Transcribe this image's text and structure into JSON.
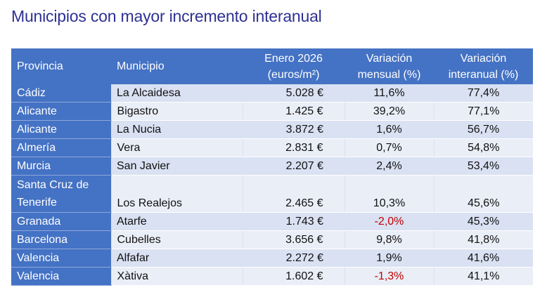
{
  "title": "Municipios con mayor incremento interanual",
  "headers": {
    "provincia": "Provincia",
    "municipio": "Municipio",
    "precio_line1": "Enero 2026",
    "precio_line2": "(euros/m²)",
    "mensual_line1": "Variación",
    "mensual_line2": "mensual (%)",
    "interanual_line1": "Variación",
    "interanual_line2": "interanual (%)"
  },
  "rows": [
    {
      "provincia": "Cádiz",
      "municipio": "La Alcaidesa",
      "precio": "5.028 €",
      "mensual": "11,6%",
      "interanual": "77,4%"
    },
    {
      "provincia": "Alicante",
      "municipio": "Bigastro",
      "precio": "1.425 €",
      "mensual": "39,2%",
      "interanual": "77,1%"
    },
    {
      "provincia": "Alicante",
      "municipio": "La Nucia",
      "precio": "3.872 €",
      "mensual": "1,6%",
      "interanual": "56,7%"
    },
    {
      "provincia": "Almería",
      "municipio": "Vera",
      "precio": "2.831 €",
      "mensual": "0,7%",
      "interanual": "54,8%"
    },
    {
      "provincia": "Murcia",
      "municipio": "San Javier",
      "precio": "2.207 €",
      "mensual": "2,4%",
      "interanual": "53,4%"
    },
    {
      "provincia_line1": "Santa Cruz de",
      "provincia_line2": "Tenerife",
      "municipio": "Los Realejos",
      "precio": "2.465 €",
      "mensual": "10,3%",
      "interanual": "45,6%"
    },
    {
      "provincia": "Granada",
      "municipio": "Atarfe",
      "precio": "1.743 €",
      "mensual": "-2,0%",
      "interanual": "45,3%"
    },
    {
      "provincia": "Barcelona",
      "municipio": "Cubelles",
      "precio": "3.656 €",
      "mensual": "9,8%",
      "interanual": "41,8%"
    },
    {
      "provincia": "Valencia",
      "municipio": "Alfafar",
      "precio": "2.272 €",
      "mensual": "1,9%",
      "interanual": "41,6%"
    },
    {
      "provincia": "Valencia",
      "municipio": "Xàtiva",
      "precio": "1.602 €",
      "mensual": "-1,3%",
      "interanual": "41,1%"
    }
  ],
  "colors": {
    "header_bg": "#4472c4",
    "row_band": "#d9e1f2",
    "title": "#2e3191",
    "negative": "#c00000"
  }
}
